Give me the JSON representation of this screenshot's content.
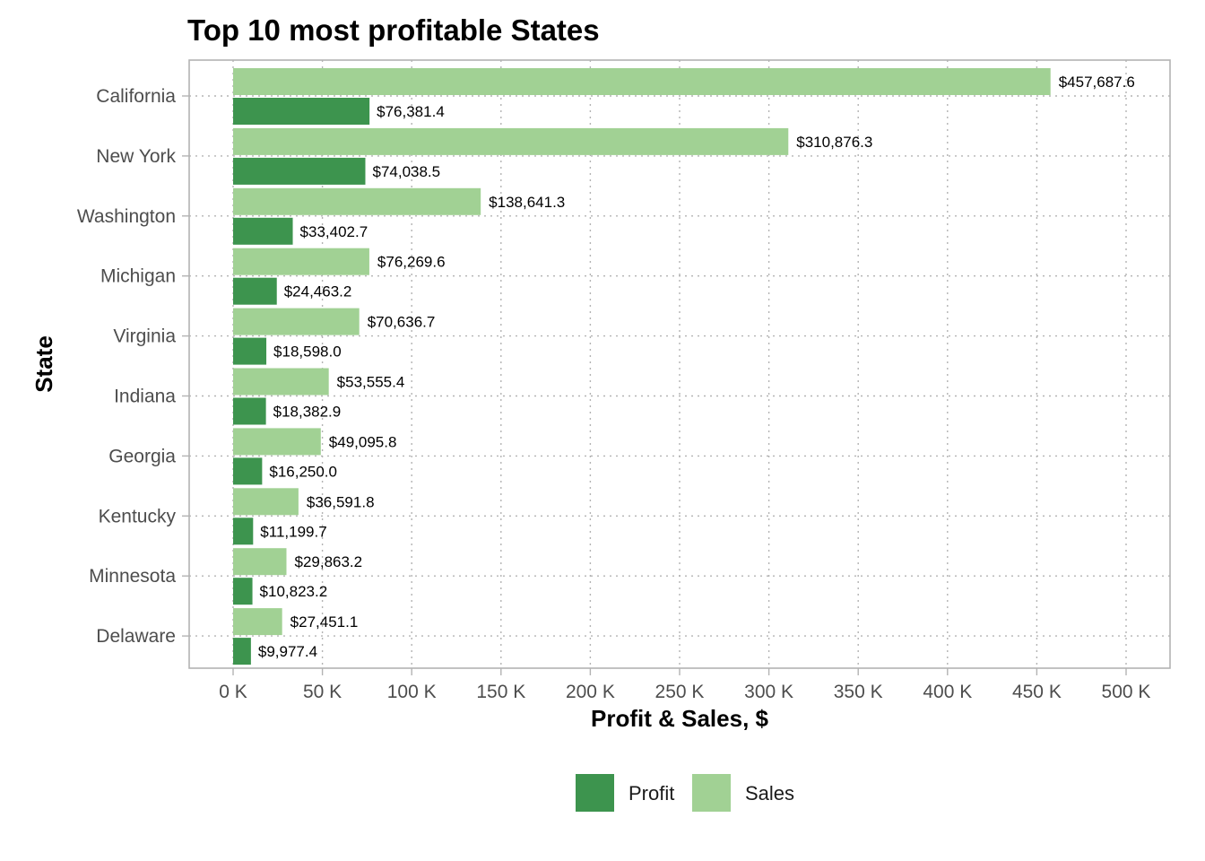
{
  "chart_data": {
    "type": "bar",
    "orientation": "horizontal",
    "title": "Top 10 most profitable States",
    "xlabel": "Profit & Sales, $",
    "ylabel": "State",
    "xlim": [
      0,
      500000
    ],
    "x_ticks": [
      0,
      50000,
      100000,
      150000,
      200000,
      250000,
      300000,
      350000,
      400000,
      450000,
      500000
    ],
    "x_tick_labels": [
      "0 K",
      "50 K",
      "100 K",
      "150 K",
      "200 K",
      "250 K",
      "300 K",
      "350 K",
      "400 K",
      "450 K",
      "500 K"
    ],
    "grid": true,
    "legend_position": "bottom",
    "categories": [
      "California",
      "New York",
      "Washington",
      "Michigan",
      "Virginia",
      "Indiana",
      "Georgia",
      "Kentucky",
      "Minnesota",
      "Delaware"
    ],
    "series": [
      {
        "name": "Sales",
        "color": "#a1d194",
        "values": [
          457687.6,
          310876.3,
          138641.3,
          76269.6,
          70636.7,
          53555.4,
          49095.8,
          36591.8,
          29863.2,
          27451.1
        ],
        "labels": [
          "$457,687.6",
          "$310,876.3",
          "$138,641.3",
          "$76,269.6",
          "$70,636.7",
          "$53,555.4",
          "$49,095.8",
          "$36,591.8",
          "$29,863.2",
          "$27,451.1"
        ]
      },
      {
        "name": "Profit",
        "color": "#3d944e",
        "values": [
          76381.4,
          74038.5,
          33402.7,
          24463.2,
          18598.0,
          18382.9,
          16250.0,
          11199.7,
          10823.2,
          9977.4
        ],
        "labels": [
          "$76,381.4",
          "$74,038.5",
          "$33,402.7",
          "$24,463.2",
          "$18,598.0",
          "$18,382.9",
          "$16,250.0",
          "$11,199.7",
          "$10,823.2",
          "$9,977.4"
        ]
      }
    ],
    "legend": [
      {
        "name": "Profit",
        "color": "#3d944e"
      },
      {
        "name": "Sales",
        "color": "#a1d194"
      }
    ]
  }
}
